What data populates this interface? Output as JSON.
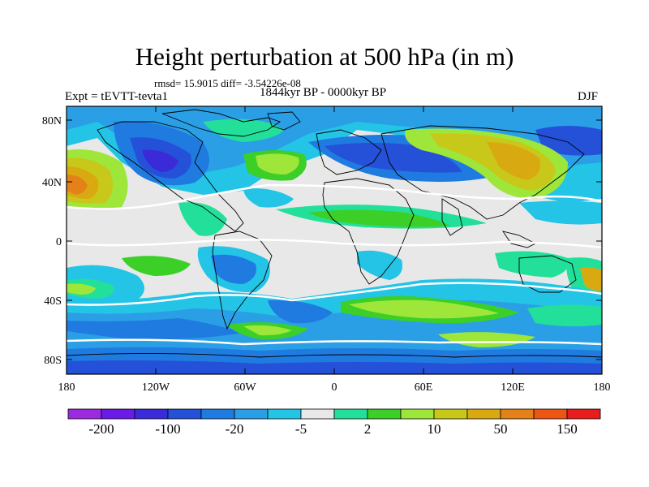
{
  "title": "Height perturbation at 500 hPa (in m)",
  "stats": "rmsd= 15.9015 diff= -3.54226e-08",
  "period": "1844kyr BP - 0000kyr BP",
  "experiment": "Expt = tEVTT-tevta1",
  "season": "DJF",
  "lat_ticks": [
    "80N",
    "40N",
    "0",
    "40S",
    "80S"
  ],
  "lon_ticks": [
    "180",
    "120W",
    "60W",
    "0",
    "60E",
    "120E",
    "180"
  ],
  "colorbar": {
    "colors": [
      "#9c2be0",
      "#6a1be8",
      "#3b2ad8",
      "#2451d8",
      "#1f7be0",
      "#2a9fe6",
      "#24c4e6",
      "#e8e8e8",
      "#22e09a",
      "#3ccf28",
      "#9ee63a",
      "#c8c81a",
      "#d9a912",
      "#e48218",
      "#ec5512",
      "#e81c1c"
    ],
    "labels": [
      "-200",
      "-100",
      "-20",
      "-5",
      "2",
      "10",
      "50",
      "150"
    ]
  }
}
